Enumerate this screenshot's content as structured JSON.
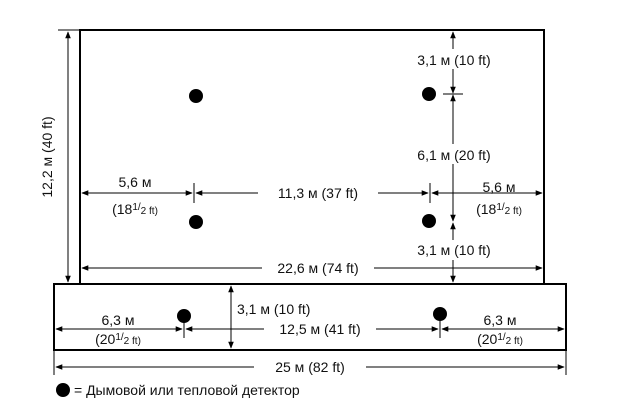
{
  "diagram": {
    "labels": {
      "height_left": "12,2 м (40 ft)",
      "top_right_gap": "3,1 м (10 ft)",
      "mid_right_gap": "6,1 м (20 ft)",
      "left_gap_upper": "5,6 м",
      "left_gap_upper_ft_a": "(18",
      "left_gap_upper_ft_frac": "1/",
      "left_gap_upper_ft_b": "2 ft)",
      "center_upper": "11,3 м (37 ft)",
      "right_gap_upper": "5,6 м",
      "right_gap_upper_ft_a": "(18",
      "right_gap_upper_ft_frac": "1/",
      "right_gap_upper_ft_b": "2 ft)",
      "bottom_right_gap": "3,1 м (10 ft)",
      "width_upper": "22,6 м (74 ft)",
      "lower_left_gap": "6,3 м",
      "lower_left_gap_ft_a": "(20",
      "lower_left_gap_ft_frac": "1/",
      "lower_left_gap_ft_b": "2 ft)",
      "lower_vertical": "3,1 м (10 ft)",
      "lower_center": "12,5 м (41 ft)",
      "lower_right_gap": "6,3 м",
      "lower_right_gap_ft_a": "(20",
      "lower_right_gap_ft_frac": "1/",
      "lower_right_gap_ft_b": "2 ft)",
      "width_total": "25 м (82 ft)"
    },
    "legend": {
      "text": "= Дымовой или тепловой детектор"
    },
    "colors": {
      "line": "#000000",
      "detector": "#000000",
      "background": "#ffffff"
    }
  }
}
